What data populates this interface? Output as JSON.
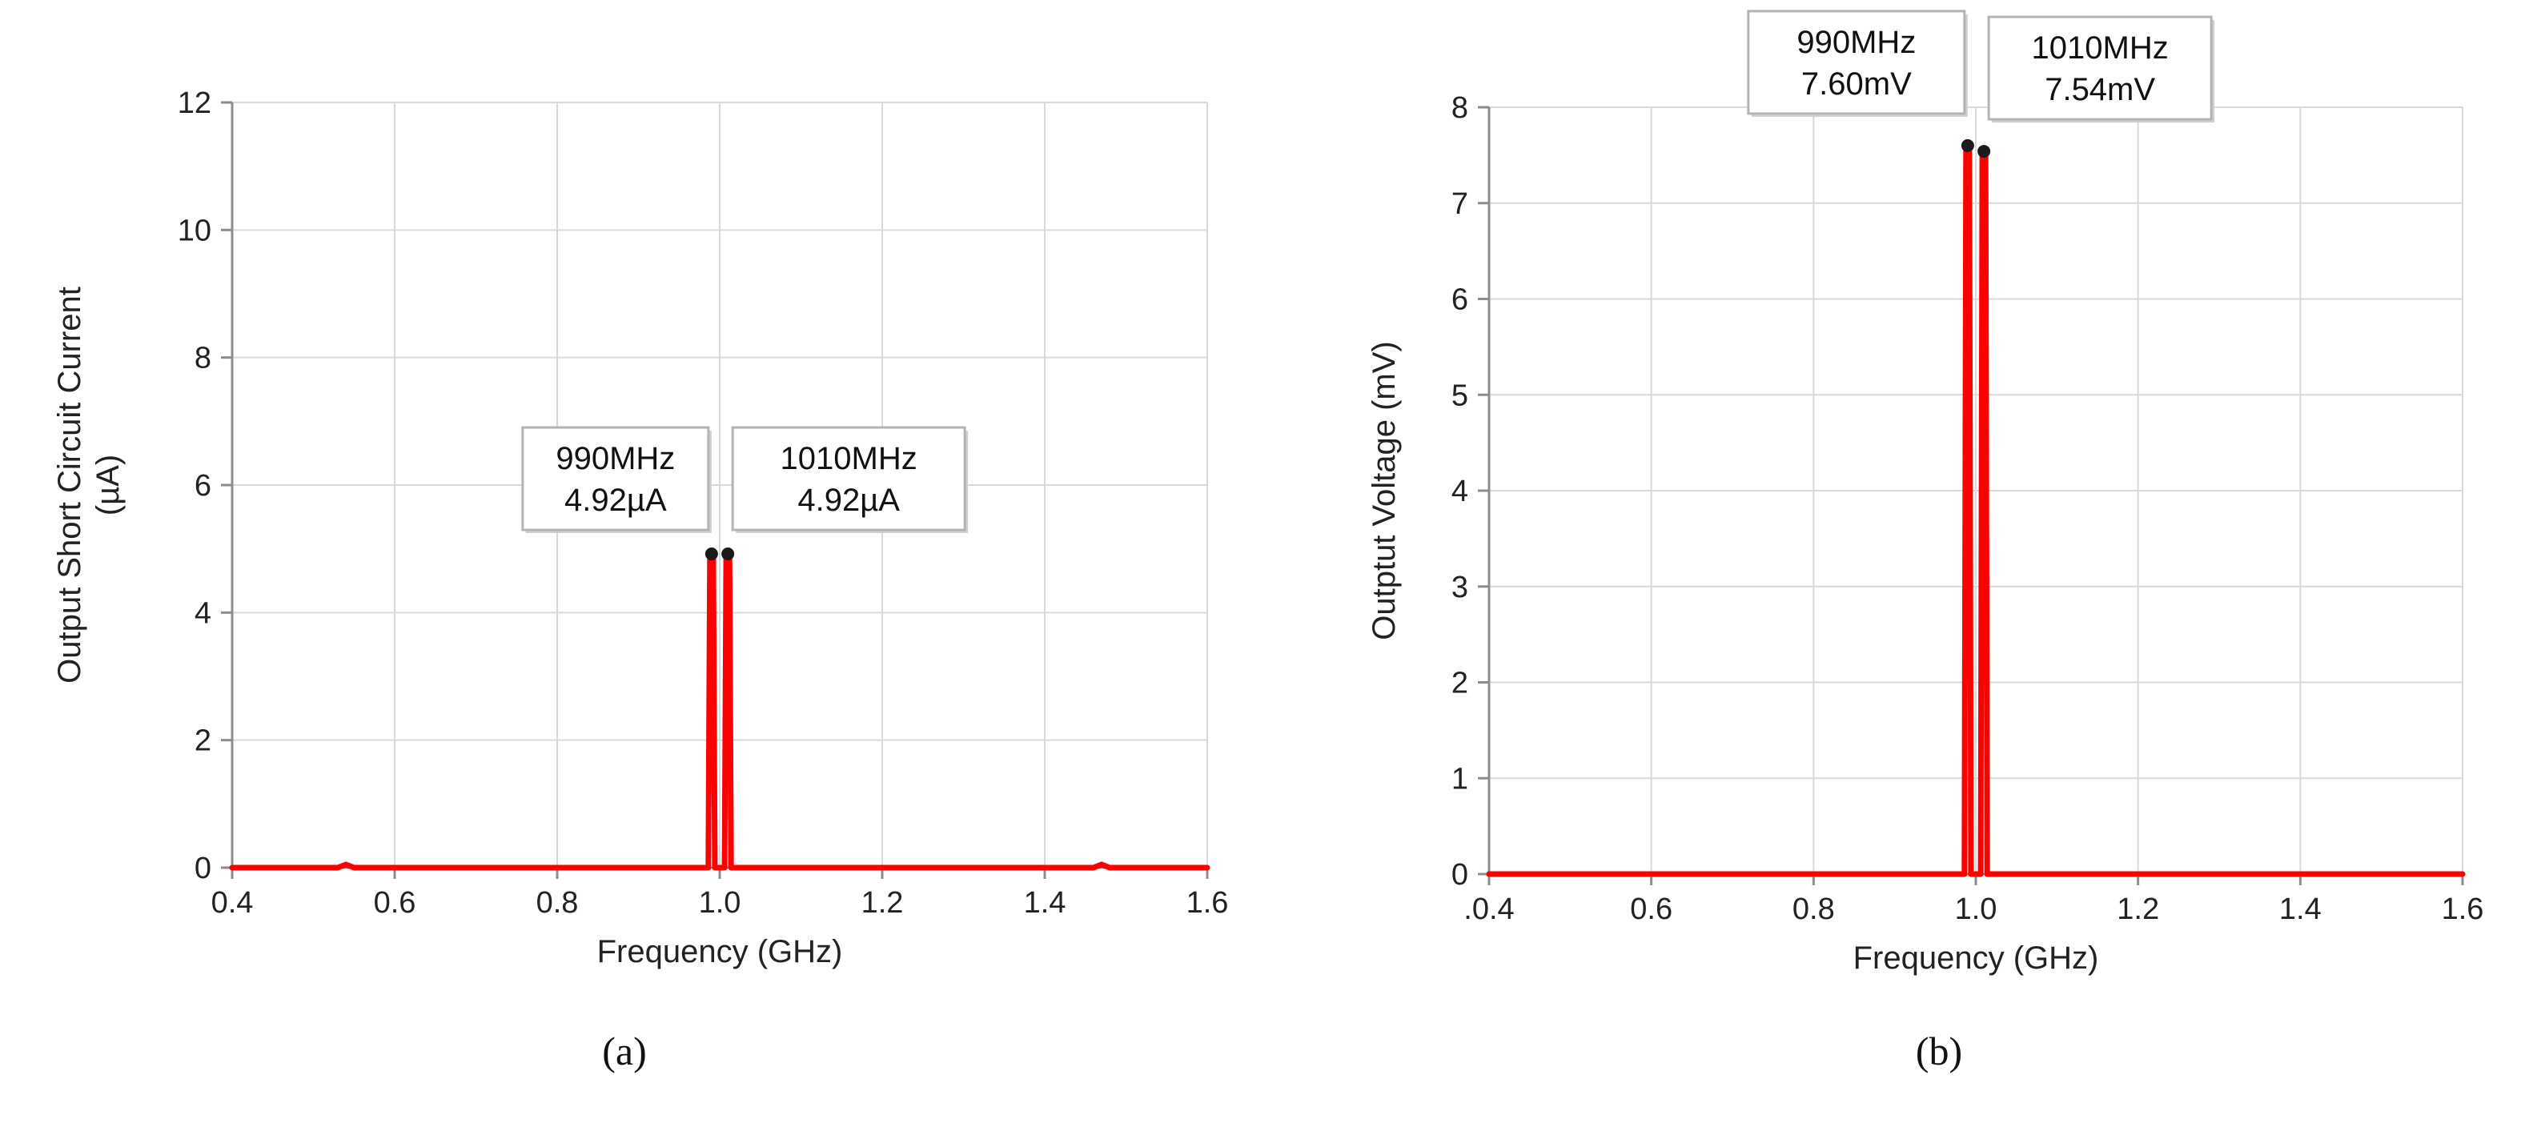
{
  "chart_data": [
    {
      "type": "line",
      "panel_label": "(a)",
      "xlabel": "Frequency (GHz)",
      "ylabel_lines": [
        "Output Short Circuit Current",
        "(µA)"
      ],
      "xlim": [
        0.4,
        1.6
      ],
      "ylim": [
        0,
        12
      ],
      "xticks": [
        0.4,
        0.6,
        0.8,
        1.0,
        1.2,
        1.4,
        1.6
      ],
      "xtick_labels": [
        "0.4",
        "0.6",
        "0.8",
        "1.0",
        "1.2",
        "1.4",
        "1.6"
      ],
      "yticks": [
        0,
        2,
        4,
        6,
        8,
        10,
        12
      ],
      "ytick_labels": [
        "0",
        "2",
        "4",
        "6",
        "8",
        "10",
        "12"
      ],
      "grid": true,
      "line_color": "#ff0000",
      "marker_color": "#1a1a1a",
      "series": [
        {
          "x": [
            0.4,
            0.53,
            0.54,
            0.55,
            0.986,
            0.988,
            0.99,
            0.992,
            0.994,
            1.006,
            1.008,
            1.01,
            1.012,
            1.014,
            1.46,
            1.47,
            1.48,
            1.6
          ],
          "y": [
            0,
            0,
            0.05,
            0,
            0,
            4.92,
            4.92,
            4.92,
            0,
            0,
            4.92,
            4.92,
            4.92,
            0,
            0,
            0.05,
            0,
            0
          ]
        }
      ],
      "annotations": [
        {
          "x": 0.99,
          "y": 4.92,
          "lines": [
            "990MHz",
            "4.92µA"
          ]
        },
        {
          "x": 1.01,
          "y": 4.92,
          "lines": [
            "1010MHz",
            "4.92µA"
          ]
        }
      ]
    },
    {
      "type": "line",
      "panel_label": "(b)",
      "xlabel": "Frequency (GHz)",
      "ylabel_lines": [
        "Outptut Voltage (mV)"
      ],
      "xlim": [
        0.4,
        1.6
      ],
      "ylim": [
        0,
        8
      ],
      "xticks": [
        0.4,
        0.6,
        0.8,
        1.0,
        1.2,
        1.4,
        1.6
      ],
      "xtick_labels": [
        ".0.4",
        "0.6",
        "0.8",
        "1.0",
        "1.2",
        "1.4",
        "1.6"
      ],
      "yticks": [
        0,
        1,
        2,
        3,
        4,
        5,
        6,
        7,
        8
      ],
      "ytick_labels": [
        "0",
        "1",
        "2",
        "3",
        "4",
        "5",
        "6",
        "7",
        "8"
      ],
      "grid": true,
      "line_color": "#ff0000",
      "marker_color": "#1a1a1a",
      "series": [
        {
          "x": [
            0.4,
            0.986,
            0.988,
            0.99,
            0.992,
            0.994,
            1.006,
            1.008,
            1.01,
            1.012,
            1.014,
            1.6
          ],
          "y": [
            0,
            0,
            7.6,
            7.6,
            7.6,
            0,
            0,
            7.54,
            7.54,
            7.54,
            0,
            0
          ]
        }
      ],
      "annotations": [
        {
          "x": 0.99,
          "y": 7.6,
          "lines": [
            "990MHz",
            "7.60mV"
          ]
        },
        {
          "x": 1.01,
          "y": 7.54,
          "lines": [
            "1010MHz",
            "7.54mV"
          ]
        }
      ]
    }
  ]
}
